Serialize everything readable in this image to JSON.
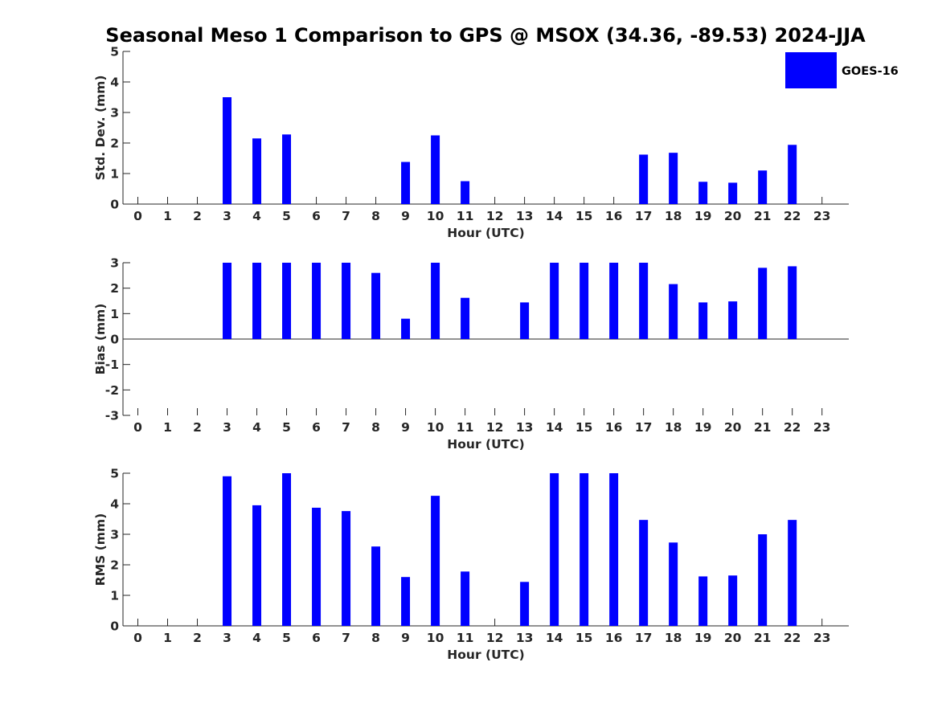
{
  "title": "Seasonal Meso 1 Comparison to GPS @ MSOX (34.36, -89.53) 2024-JJA",
  "legend": {
    "label": "GOES-16",
    "color": "#0000ff"
  },
  "chart_data": [
    {
      "type": "bar",
      "xlabel": "Hour (UTC)",
      "ylabel": "Std. Dev. (mm)",
      "ylim": [
        0,
        5
      ],
      "yticks": [
        0,
        1,
        2,
        3,
        4,
        5
      ],
      "categories": [
        "0",
        "1",
        "2",
        "3",
        "4",
        "5",
        "6",
        "7",
        "8",
        "9",
        "10",
        "11",
        "12",
        "13",
        "14",
        "15",
        "16",
        "17",
        "18",
        "19",
        "20",
        "21",
        "22",
        "23"
      ],
      "series": [
        {
          "name": "GOES-16",
          "color": "#0000ff",
          "values": [
            null,
            null,
            null,
            3.5,
            2.15,
            2.28,
            null,
            null,
            null,
            1.38,
            2.25,
            0.75,
            null,
            null,
            null,
            null,
            null,
            1.62,
            1.68,
            0.73,
            0.7,
            1.1,
            1.94,
            null
          ]
        }
      ]
    },
    {
      "type": "bar",
      "xlabel": "Hour (UTC)",
      "ylabel": "Bias (mm)",
      "ylim": [
        -3,
        3
      ],
      "yticks": [
        -3,
        -2,
        -1,
        0,
        1,
        2,
        3
      ],
      "categories": [
        "0",
        "1",
        "2",
        "3",
        "4",
        "5",
        "6",
        "7",
        "8",
        "9",
        "10",
        "11",
        "12",
        "13",
        "14",
        "15",
        "16",
        "17",
        "18",
        "19",
        "20",
        "21",
        "22",
        "23"
      ],
      "series": [
        {
          "name": "GOES-16",
          "color": "#0000ff",
          "values": [
            null,
            null,
            null,
            3.0,
            3.0,
            3.0,
            3.0,
            3.0,
            2.6,
            0.8,
            3.0,
            1.62,
            null,
            1.44,
            3.0,
            3.0,
            3.0,
            3.0,
            2.16,
            1.44,
            1.48,
            2.8,
            2.86,
            null
          ]
        }
      ]
    },
    {
      "type": "bar",
      "xlabel": "Hour (UTC)",
      "ylabel": "RMS (mm)",
      "ylim": [
        0,
        5
      ],
      "yticks": [
        0,
        1,
        2,
        3,
        4,
        5
      ],
      "categories": [
        "0",
        "1",
        "2",
        "3",
        "4",
        "5",
        "6",
        "7",
        "8",
        "9",
        "10",
        "11",
        "12",
        "13",
        "14",
        "15",
        "16",
        "17",
        "18",
        "19",
        "20",
        "21",
        "22",
        "23"
      ],
      "series": [
        {
          "name": "GOES-16",
          "color": "#0000ff",
          "values": [
            null,
            null,
            null,
            4.9,
            3.95,
            5.0,
            3.87,
            3.76,
            2.6,
            1.6,
            4.26,
            1.78,
            null,
            1.44,
            5.0,
            5.0,
            5.0,
            3.47,
            2.73,
            1.62,
            1.65,
            3.0,
            3.47,
            null
          ]
        }
      ]
    }
  ]
}
